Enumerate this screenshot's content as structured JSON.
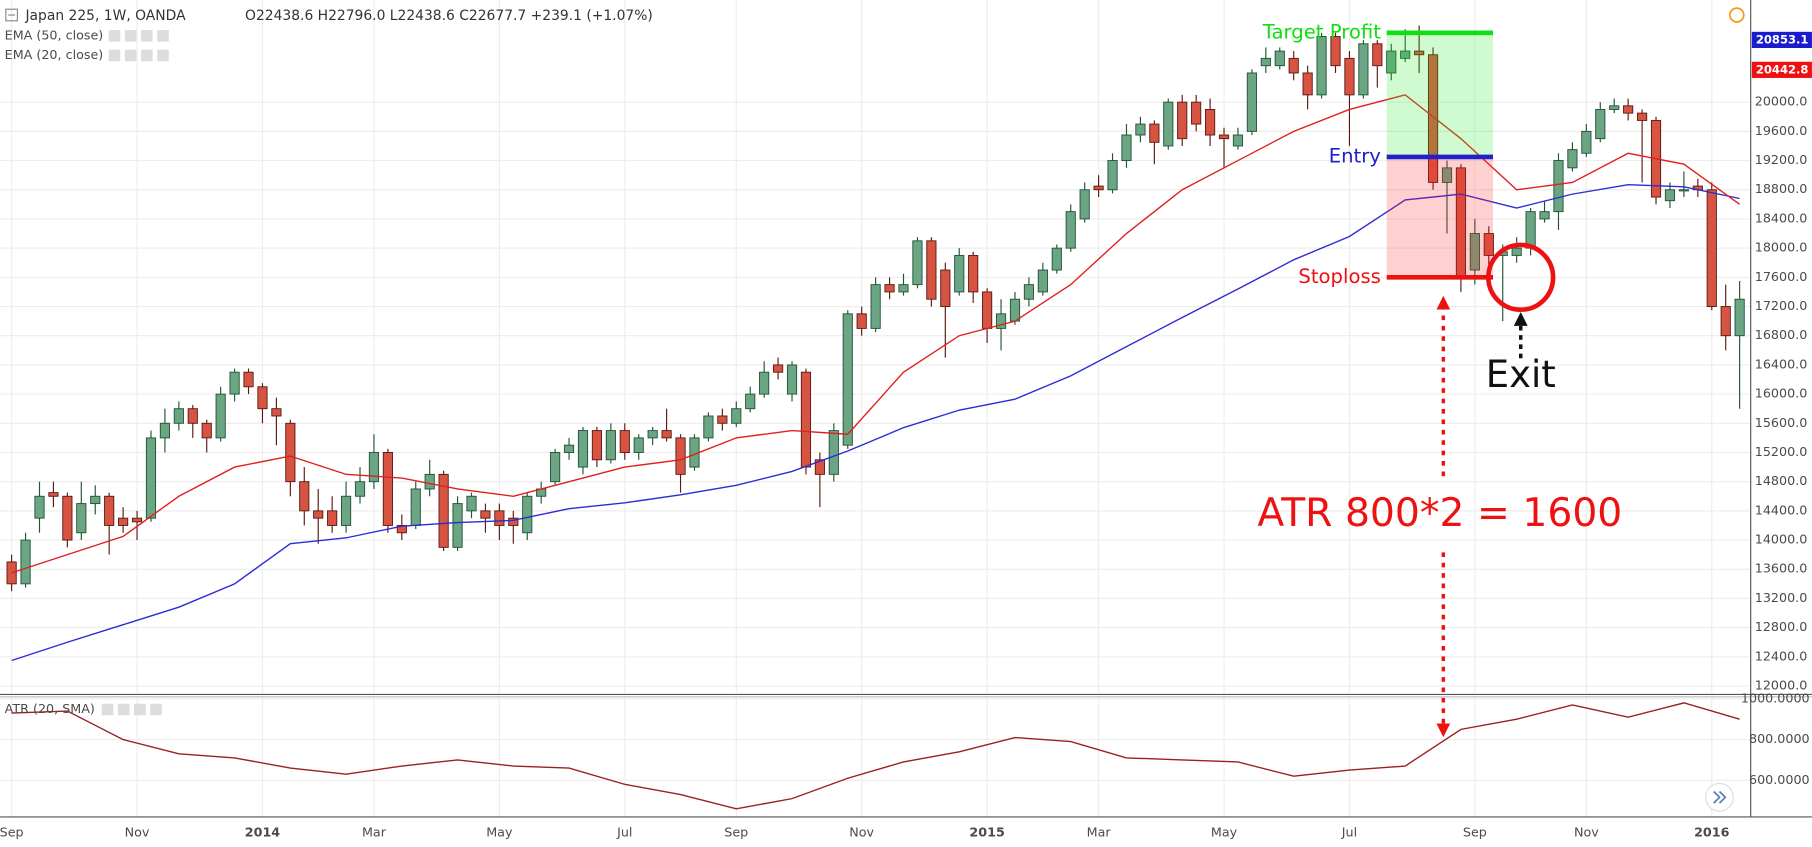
{
  "chart_data": {
    "type": "candlestick",
    "title": "Japan 225, 1W, OANDA",
    "ohlc_info": "O22438.6 H22796.0 L22438.6 C22677.7 +239.1 (+1.07%)",
    "categories": [
      "Sep",
      null,
      null,
      null,
      null,
      null,
      null,
      null,
      null,
      "Nov",
      null,
      null,
      null,
      null,
      null,
      null,
      null,
      null,
      "2014",
      null,
      null,
      null,
      null,
      null,
      null,
      null,
      "Mar",
      null,
      null,
      null,
      null,
      null,
      null,
      null,
      null,
      "May",
      null,
      null,
      null,
      null,
      null,
      null,
      null,
      null,
      "Jul",
      null,
      null,
      null,
      null,
      null,
      null,
      null,
      "Sep",
      null,
      null,
      null,
      null,
      null,
      null,
      null,
      null,
      "Nov",
      null,
      null,
      null,
      null,
      null,
      null,
      null,
      null,
      "2015",
      null,
      null,
      null,
      null,
      null,
      null,
      null,
      "Mar",
      null,
      null,
      null,
      null,
      null,
      null,
      null,
      null,
      "May",
      null,
      null,
      null,
      null,
      null,
      null,
      null,
      null,
      "Jul",
      null,
      null,
      null,
      null,
      null,
      null,
      null,
      null,
      "Sep",
      null,
      null,
      null,
      null,
      null,
      null,
      null,
      "Nov",
      null,
      null,
      null,
      null,
      null,
      null,
      null,
      null,
      "2016",
      null,
      null
    ],
    "open": [
      13700,
      13400,
      14300,
      14650,
      14600,
      14100,
      14500,
      14600,
      14300,
      14300,
      14300,
      15400,
      15600,
      15800,
      15600,
      15400,
      16000,
      16300,
      16100,
      15800,
      15600,
      14800,
      14400,
      14400,
      14200,
      14600,
      14800,
      15200,
      14200,
      14200,
      14700,
      14900,
      13900,
      14400,
      14400,
      14400,
      14300,
      14100,
      14600,
      14800,
      15200,
      15000,
      15500,
      15100,
      15500,
      15200,
      15400,
      15500,
      15400,
      15000,
      15400,
      15700,
      15600,
      15800,
      16000,
      16400,
      16000,
      16300,
      15100,
      14900,
      15300,
      17100,
      16900,
      17500,
      17400,
      17500,
      18100,
      17700,
      17400,
      17900,
      17400,
      16900,
      17000,
      17300,
      17400,
      17700,
      18000,
      18400,
      18850,
      18800,
      19200,
      19550,
      19700,
      19400,
      20000,
      20000,
      19900,
      19550,
      19400,
      19600,
      20500,
      20500,
      20600,
      20400,
      20100,
      20900,
      20600,
      20100,
      20800,
      20400,
      20600,
      20700,
      20650,
      18900,
      19100,
      17700,
      18200,
      17900,
      17900,
      18000,
      18400,
      18500,
      19100,
      19300,
      19500,
      19900,
      19950,
      19850,
      19750,
      18650,
      18800,
      18850,
      18800,
      17200,
      16800
    ],
    "high": [
      13800,
      14100,
      14800,
      14800,
      14650,
      14800,
      14750,
      14650,
      14450,
      14400,
      15500,
      15800,
      15900,
      15850,
      15650,
      16100,
      16350,
      16350,
      16150,
      15950,
      15650,
      15000,
      14700,
      14600,
      14800,
      15000,
      15450,
      15250,
      14350,
      14800,
      15100,
      14950,
      14600,
      14650,
      14500,
      14500,
      14400,
      14650,
      14800,
      15250,
      15400,
      15550,
      15550,
      15600,
      15600,
      15450,
      15550,
      15800,
      15450,
      15450,
      15750,
      15800,
      15900,
      16100,
      16450,
      16500,
      16450,
      16350,
      15200,
      15600,
      17150,
      17200,
      17600,
      17600,
      17650,
      18150,
      18150,
      17800,
      18000,
      17950,
      17450,
      17300,
      17400,
      17600,
      17800,
      18050,
      18600,
      18900,
      19000,
      19300,
      19700,
      19800,
      19750,
      20050,
      20100,
      20100,
      20050,
      19650,
      19650,
      20450,
      20750,
      20750,
      20700,
      20500,
      20950,
      20950,
      20700,
      20850,
      20850,
      20800,
      21000,
      21050,
      20750,
      19200,
      19150,
      18400,
      18300,
      18050,
      18150,
      18550,
      18650,
      19300,
      19450,
      19700,
      20000,
      20050,
      20050,
      19900,
      19800,
      18900,
      19050,
      18950,
      18900,
      17500,
      17550
    ],
    "low": [
      13300,
      13350,
      14100,
      14450,
      13900,
      14000,
      14350,
      13800,
      14100,
      14000,
      14250,
      15200,
      15500,
      15400,
      15200,
      15350,
      15900,
      16000,
      15600,
      15300,
      14600,
      14200,
      13950,
      14100,
      14100,
      14500,
      14700,
      14100,
      14000,
      14150,
      14600,
      13850,
      13850,
      14300,
      14100,
      14000,
      13950,
      14000,
      14500,
      14750,
      15100,
      14900,
      15000,
      15050,
      15100,
      15100,
      15300,
      15350,
      14650,
      14950,
      15350,
      15500,
      15550,
      15750,
      15950,
      16200,
      15900,
      14900,
      14450,
      14800,
      15250,
      16800,
      16850,
      17300,
      17350,
      17450,
      17200,
      16500,
      17350,
      17250,
      16700,
      16600,
      16950,
      17200,
      17350,
      17650,
      17950,
      18350,
      18700,
      18750,
      19100,
      19450,
      19150,
      19350,
      19400,
      19600,
      19400,
      19100,
      19350,
      19550,
      20400,
      20450,
      20300,
      19900,
      20050,
      20400,
      19400,
      20050,
      20200,
      20300,
      20550,
      20400,
      18800,
      18200,
      17400,
      17500,
      17600,
      17000,
      17800,
      17900,
      18350,
      18250,
      19050,
      19250,
      19450,
      19850,
      19750,
      18900,
      18600,
      18550,
      18700,
      18700,
      17150,
      16600,
      15800
    ],
    "close": [
      13400,
      14000,
      14600,
      14600,
      14000,
      14500,
      14600,
      14200,
      14200,
      14250,
      15400,
      15600,
      15800,
      15600,
      15400,
      16000,
      16300,
      16100,
      15800,
      15700,
      14800,
      14400,
      14300,
      14200,
      14600,
      14800,
      15200,
      14200,
      14100,
      14700,
      14900,
      13900,
      14500,
      14600,
      14300,
      14200,
      14200,
      14600,
      14700,
      15200,
      15300,
      15500,
      15100,
      15500,
      15200,
      15400,
      15500,
      15400,
      14900,
      15400,
      15700,
      15600,
      15800,
      16000,
      16300,
      16300,
      16400,
      15000,
      14900,
      15500,
      17100,
      16900,
      17500,
      17400,
      17500,
      18100,
      17300,
      17200,
      17900,
      17400,
      16900,
      17100,
      17300,
      17500,
      17700,
      18000,
      18500,
      18800,
      18800,
      19200,
      19550,
      19700,
      19450,
      20000,
      19500,
      19700,
      19550,
      19500,
      19550,
      20400,
      20600,
      20700,
      20400,
      20100,
      20900,
      20500,
      20100,
      20800,
      20500,
      20700,
      20700,
      20650,
      18900,
      19100,
      17600,
      18200,
      17900,
      17950,
      18000,
      18500,
      18500,
      19200,
      19350,
      19600,
      19900,
      19950,
      19850,
      19750,
      18700,
      18800,
      18800,
      18800,
      17200,
      16800,
      17300
    ],
    "up_color": "#6ba583",
    "up_border": "#225437",
    "down_color": "#d75442",
    "down_border": "#5b1a13",
    "ylim": [
      11900,
      21400
    ],
    "yticks": [
      {
        "value": 12000,
        "label": "12000.0"
      },
      {
        "value": 12400,
        "label": "12400.0"
      },
      {
        "value": 12800,
        "label": "12800.0"
      },
      {
        "value": 13200,
        "label": "13200.0"
      },
      {
        "value": 13600,
        "label": "13600.0"
      },
      {
        "value": 14000,
        "label": "14000.0"
      },
      {
        "value": 14400,
        "label": "14400.0"
      },
      {
        "value": 14800,
        "label": "14800.0"
      },
      {
        "value": 15200,
        "label": "15200.0"
      },
      {
        "value": 15600,
        "label": "15600.0"
      },
      {
        "value": 16000,
        "label": "16000.0"
      },
      {
        "value": 16400,
        "label": "16400.0"
      },
      {
        "value": 16800,
        "label": "16800.0"
      },
      {
        "value": 17200,
        "label": "17200.0"
      },
      {
        "value": 17600,
        "label": "17600.0"
      },
      {
        "value": 18000,
        "label": "18000.0"
      },
      {
        "value": 18400,
        "label": "18400.0"
      },
      {
        "value": 18800,
        "label": "18800.0"
      },
      {
        "value": 19200,
        "label": "19200.0"
      },
      {
        "value": 19600,
        "label": "19600.0"
      },
      {
        "value": 20000,
        "label": "20000.0"
      }
    ],
    "grid": true,
    "lines": [
      {
        "name": "EMA (50, close)",
        "color": "#2c2cd8",
        "x": [
          0,
          4,
          8,
          12,
          16,
          20,
          24,
          28,
          32,
          36,
          40,
          44,
          48,
          52,
          56,
          60,
          64,
          68,
          72,
          76,
          80,
          84,
          88,
          92,
          96,
          100,
          104,
          108,
          112,
          116,
          120,
          124
        ],
        "values": [
          12350,
          12600,
          12840,
          13080,
          13400,
          13950,
          14030,
          14190,
          14240,
          14270,
          14430,
          14510,
          14620,
          14750,
          14940,
          15220,
          15540,
          15780,
          15930,
          16250,
          16650,
          17050,
          17440,
          17840,
          18160,
          18660,
          18740,
          18550,
          18740,
          18870,
          18840,
          18680
        ]
      },
      {
        "name": "EMA (20, close)",
        "color": "#e02020",
        "x": [
          0,
          4,
          8,
          12,
          16,
          20,
          24,
          28,
          32,
          36,
          40,
          44,
          48,
          52,
          56,
          60,
          64,
          68,
          72,
          76,
          80,
          84,
          88,
          92,
          96,
          100,
          104,
          108,
          112,
          116,
          120,
          124
        ],
        "values": [
          13550,
          13800,
          14050,
          14600,
          15000,
          15150,
          14900,
          14850,
          14700,
          14600,
          14800,
          15000,
          15100,
          15400,
          15500,
          15450,
          16300,
          16800,
          17000,
          17500,
          18200,
          18800,
          19200,
          19600,
          19900,
          20100,
          19500,
          18800,
          18900,
          19300,
          19150,
          18600
        ]
      }
    ],
    "price_tags": [
      {
        "value": 20853.1,
        "color": "#1c1ccf"
      },
      {
        "value": 20442.8,
        "color": "#f01010"
      }
    ],
    "atr": {
      "name": "ATR (20, SMA)",
      "color": "#9b2020",
      "x": [
        0,
        4,
        8,
        12,
        16,
        20,
        24,
        28,
        32,
        36,
        40,
        44,
        48,
        52,
        56,
        60,
        64,
        68,
        72,
        76,
        80,
        84,
        88,
        92,
        96,
        100,
        104,
        108,
        112,
        116,
        120,
        124
      ],
      "values": [
        930,
        940,
        800,
        730,
        710,
        660,
        630,
        670,
        700,
        670,
        660,
        580,
        530,
        460,
        510,
        610,
        690,
        740,
        810,
        790,
        710,
        700,
        690,
        620,
        650,
        670,
        850,
        900,
        970,
        910,
        980,
        900
      ],
      "ylim": [
        420,
        1010
      ],
      "yticks": [
        {
          "value": 600,
          "label": "600.0000"
        },
        {
          "value": 800,
          "label": "800.0000"
        },
        {
          "value": 1000,
          "label": "1000.0000"
        }
      ]
    },
    "annotations": [
      {
        "label": "Target Profit",
        "value": 20950,
        "color": "#10e010"
      },
      {
        "label": "Entry",
        "value": 19250,
        "color": "#2020cc"
      },
      {
        "label": "Stoploss",
        "value": 17600,
        "color": "#ee1111"
      }
    ],
    "exit_label": "Exit",
    "atr_note": "ATR 800*2 = 1600"
  }
}
